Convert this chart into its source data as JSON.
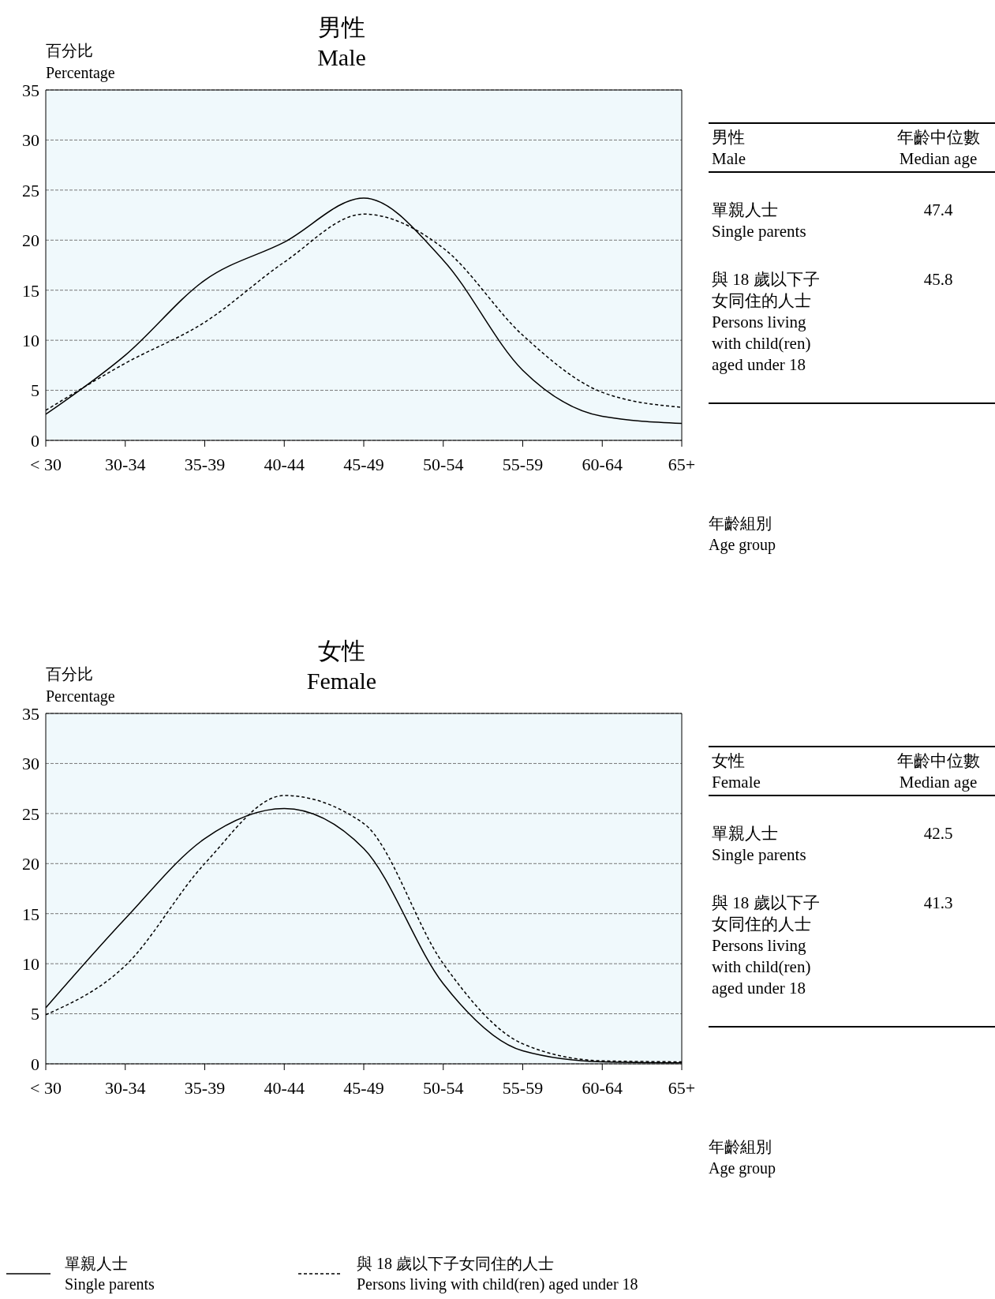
{
  "chart_data": [
    {
      "type": "line",
      "title": "男性\nMale",
      "ylabel": "百分比\nPercentage",
      "xlabel": "年齡組別\nAge group",
      "categories": [
        "< 30",
        "30-34",
        "35-39",
        "40-44",
        "45-49",
        "50-54",
        "55-59",
        "60-64",
        "65+"
      ],
      "series": [
        {
          "color": "#000000",
          "line_style": "solid",
          "values": [
            2.6,
            8.5,
            16,
            19.8,
            24.2,
            18,
            7,
            2.4,
            1.7
          ]
        },
        {
          "color": "#000000",
          "line_style": "dashed",
          "values": [
            3.0,
            7.7,
            11.8,
            17.8,
            22.6,
            19.2,
            10.5,
            4.8,
            3.3
          ]
        }
      ],
      "ylim": [
        0,
        35
      ],
      "yticks": [
        0,
        5,
        10,
        15,
        20,
        25,
        30,
        35
      ],
      "grid": "y",
      "marker": "none",
      "annotations": [
        "男性\nMale",
        "年齡中位數\nMedian age",
        "單親人士\nSingle parents",
        "47.4",
        "與 18 歲以下子女同住的人士\nPersons living with child(ren) aged under 18",
        "45.8"
      ]
    },
    {
      "type": "line",
      "title": "女性\nFemale",
      "ylabel": "百分比\nPercentage",
      "xlabel": "年齡組別\nAge group",
      "categories": [
        "< 30",
        "30-34",
        "35-39",
        "40-44",
        "45-49",
        "50-54",
        "55-59",
        "60-64",
        "65+"
      ],
      "series": [
        {
          "name": "單親人士\nSingle parents",
          "color": "#000000",
          "line_style": "solid",
          "values": [
            5.6,
            14.5,
            22.5,
            25.5,
            21.5,
            8,
            1.3,
            0.2,
            0.1
          ]
        },
        {
          "name": "與 18 歲以下子女同住的人士\nPersons living with child(ren) aged under 18",
          "color": "#000000",
          "line_style": "dashed",
          "values": [
            4.9,
            9.8,
            20,
            26.8,
            24,
            10,
            2,
            0.3,
            0.2
          ]
        }
      ],
      "ylim": [
        0,
        35
      ],
      "yticks": [
        0,
        5,
        10,
        15,
        20,
        25,
        30,
        35
      ],
      "grid": "y",
      "legend": "bottom",
      "marker": "none",
      "annotations": [
        "女性\nFemale",
        "年齡中位數\nMedian age",
        "單親人士\nSingle parents",
        "42.5",
        "與 18 歲以下子女同住的人士\nPersons living with child(ren) aged under 18",
        "41.3"
      ]
    }
  ]
}
